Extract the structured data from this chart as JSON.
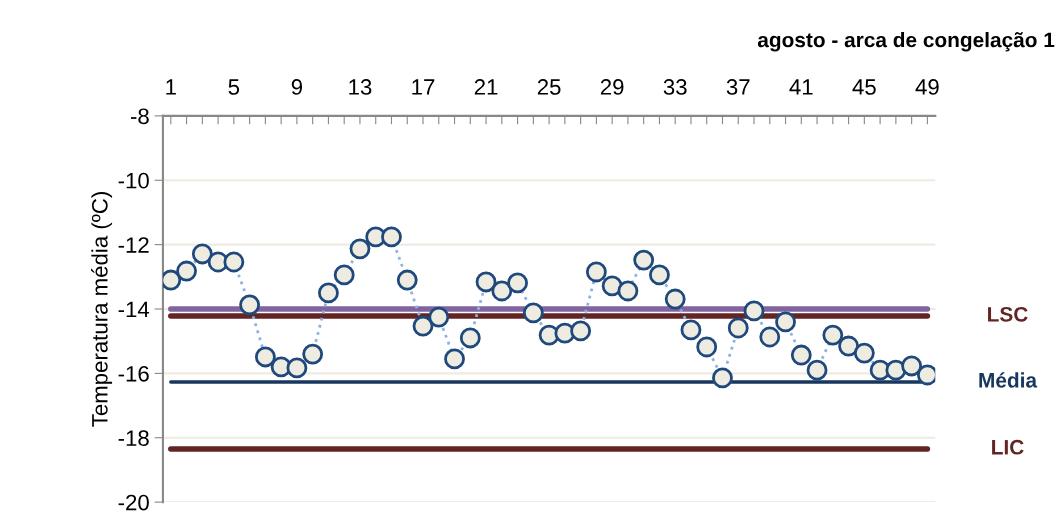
{
  "chart_data": {
    "type": "line",
    "title": "agosto - arca de congelação 1",
    "ylabel": "Temperatura média (ºC)",
    "categories": [
      "1",
      null,
      null,
      null,
      "5",
      null,
      null,
      null,
      "9",
      null,
      null,
      null,
      "13",
      null,
      null,
      null,
      "17",
      null,
      null,
      null,
      "21",
      null,
      null,
      null,
      "25",
      null,
      null,
      null,
      "29",
      null,
      null,
      null,
      "33",
      null,
      null,
      null,
      "37",
      null,
      null,
      null,
      "41",
      null,
      null,
      null,
      "45",
      null,
      null,
      null,
      "49"
    ],
    "series": [
      {
        "color": "#8db3e2",
        "values": [
          -13.1,
          -12.82,
          -12.29,
          -12.54,
          -12.54,
          -13.87,
          -15.49,
          -15.8,
          -15.83,
          -15.4,
          -13.5,
          -12.94,
          -12.13,
          -11.76,
          -11.76,
          -13.1,
          -14.53,
          -14.25,
          -15.55,
          -14.9,
          -13.16,
          -13.44,
          -13.19,
          -14.12,
          -14.81,
          -14.75,
          -14.68,
          -12.85,
          -13.28,
          -13.44,
          -12.48,
          -12.94,
          -13.69,
          -14.65,
          -15.18,
          -16.14,
          -14.59,
          -14.06,
          -14.87,
          -14.4,
          -15.43,
          -15.9,
          -14.81,
          -15.15,
          -15.37,
          -15.9,
          -15.9,
          -15.77,
          -16.05
        ]
      }
    ],
    "ylim": [
      -20,
      -8
    ],
    "yticks": [
      -20,
      -18,
      -16,
      -14,
      -12,
      -10,
      -8
    ],
    "marker": "circle",
    "line_style": "dotted",
    "grid": "y",
    "ref_lines": [
      {
        "axis": "y",
        "value": -14.0,
        "label": null,
        "color": "#8064a2"
      },
      {
        "axis": "y",
        "value": -14.22,
        "label": "LSC",
        "color": "#632523"
      },
      {
        "axis": "y",
        "value": -16.27,
        "label": "Média",
        "color": "#17375e"
      },
      {
        "axis": "y",
        "value": -18.35,
        "label": "LIC",
        "color": "#632523"
      }
    ]
  }
}
